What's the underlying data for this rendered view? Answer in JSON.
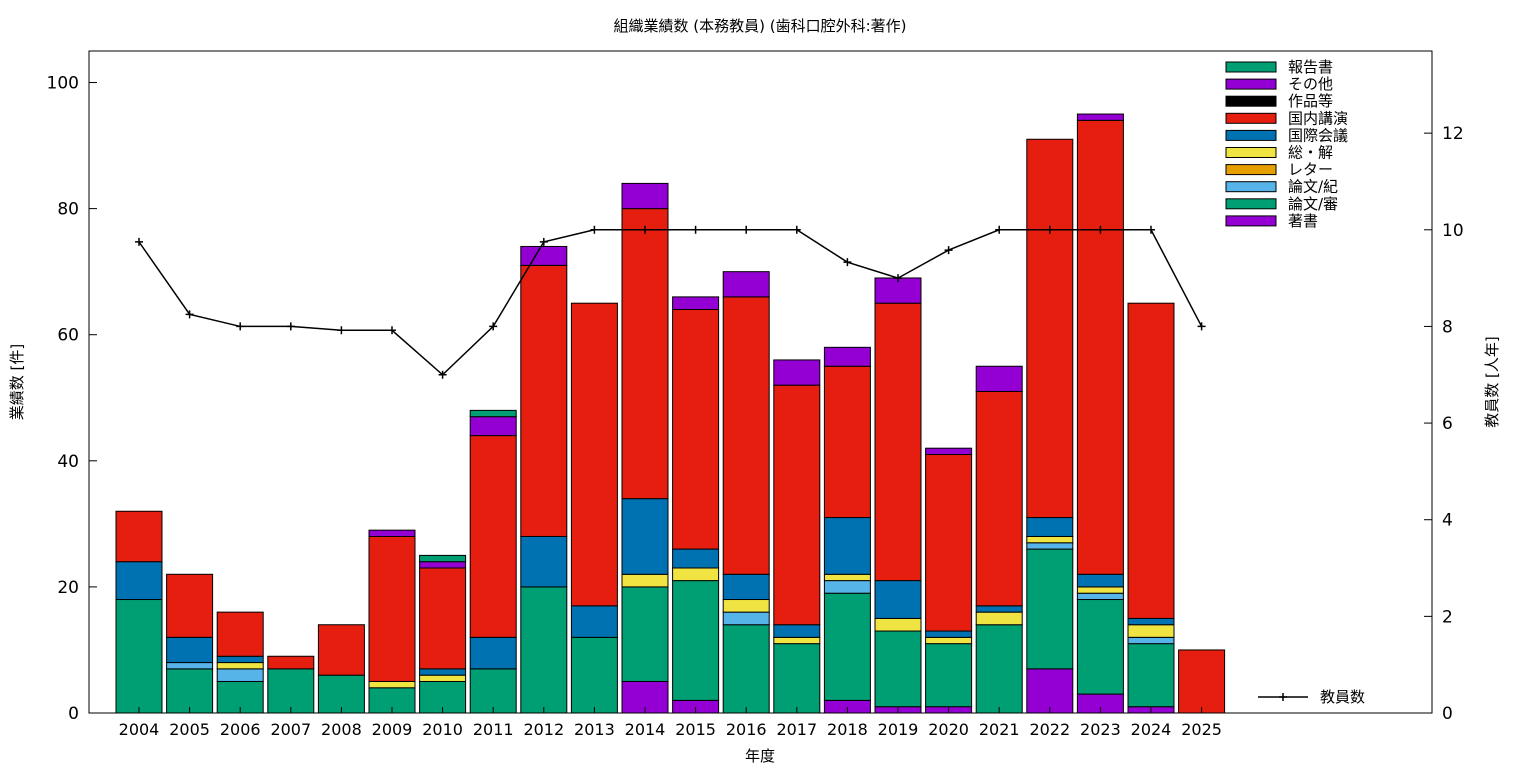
{
  "chart_data": {
    "type": "bar",
    "stacked": true,
    "title": "組織業績数 (本務教員) (歯科口腔外科:著作)",
    "xlabel": "年度",
    "ylabel": "業績数 [件]",
    "y2label": "教員数 [人年]",
    "ylim": [
      0,
      105
    ],
    "y2lim": [
      0,
      13.7
    ],
    "yticks": [
      0,
      20,
      40,
      60,
      80,
      100
    ],
    "y2ticks": [
      0,
      2,
      4,
      6,
      8,
      10,
      12
    ],
    "grid": false,
    "legend_position": "top-right",
    "categories": [
      "2004",
      "2005",
      "2006",
      "2007",
      "2008",
      "2009",
      "2010",
      "2011",
      "2012",
      "2013",
      "2014",
      "2015",
      "2016",
      "2017",
      "2018",
      "2019",
      "2020",
      "2021",
      "2022",
      "2023",
      "2024",
      "2025"
    ],
    "series": [
      {
        "name": "著書",
        "color": "#9400d3",
        "values": [
          0,
          0,
          0,
          0,
          0,
          0,
          0,
          0,
          0,
          0,
          5,
          2,
          0,
          0,
          2,
          1,
          1,
          0,
          7,
          3,
          1,
          0
        ]
      },
      {
        "name": "論文/審",
        "color": "#009e73",
        "values": [
          18,
          7,
          5,
          7,
          6,
          4,
          5,
          7,
          20,
          12,
          15,
          19,
          14,
          11,
          17,
          12,
          10,
          14,
          19,
          15,
          10,
          0
        ]
      },
      {
        "name": "論文/紀",
        "color": "#56b4e9",
        "values": [
          0,
          1,
          2,
          0,
          0,
          0,
          0,
          0,
          0,
          0,
          0,
          0,
          2,
          0,
          2,
          0,
          0,
          0,
          1,
          1,
          1,
          0
        ]
      },
      {
        "name": "レター",
        "color": "#e69f00",
        "values": [
          0,
          0,
          0,
          0,
          0,
          0,
          0,
          0,
          0,
          0,
          0,
          0,
          0,
          0,
          0,
          0,
          0,
          0,
          0,
          0,
          0,
          0
        ]
      },
      {
        "name": "総・解",
        "color": "#f0e442",
        "values": [
          0,
          0,
          1,
          0,
          0,
          1,
          1,
          0,
          0,
          0,
          2,
          2,
          2,
          1,
          1,
          2,
          1,
          2,
          1,
          1,
          2,
          0
        ]
      },
      {
        "name": "国際会議",
        "color": "#0072b2",
        "values": [
          6,
          4,
          1,
          0,
          0,
          0,
          1,
          5,
          8,
          5,
          12,
          3,
          4,
          2,
          9,
          6,
          1,
          1,
          3,
          2,
          1,
          0
        ]
      },
      {
        "name": "国内講演",
        "color": "#e51e10",
        "values": [
          8,
          10,
          7,
          2,
          8,
          23,
          16,
          32,
          43,
          48,
          46,
          38,
          44,
          38,
          24,
          44,
          28,
          34,
          60,
          72,
          50,
          10
        ]
      },
      {
        "name": "作品等",
        "color": "#000000",
        "values": [
          0,
          0,
          0,
          0,
          0,
          0,
          0,
          0,
          0,
          0,
          0,
          0,
          0,
          0,
          0,
          0,
          0,
          0,
          0,
          0,
          0,
          0
        ]
      },
      {
        "name": "その他",
        "color": "#9400d3",
        "values": [
          0,
          0,
          0,
          0,
          0,
          1,
          1,
          3,
          3,
          0,
          4,
          2,
          4,
          4,
          3,
          4,
          1,
          4,
          0,
          1,
          0,
          0
        ]
      },
      {
        "name": "報告書",
        "color": "#009e73",
        "values": [
          0,
          0,
          0,
          0,
          0,
          0,
          1,
          1,
          0,
          0,
          0,
          0,
          0,
          0,
          0,
          0,
          0,
          0,
          0,
          0,
          0,
          0
        ]
      }
    ],
    "line_series": {
      "name": "教員数",
      "color": "#000000",
      "axis": "y2",
      "values": [
        9.75,
        8.25,
        8,
        8,
        7.92,
        7.92,
        7,
        8,
        9.75,
        10,
        10,
        10,
        10,
        10,
        9.33,
        9,
        9.58,
        10,
        10,
        10,
        10,
        8
      ]
    }
  }
}
